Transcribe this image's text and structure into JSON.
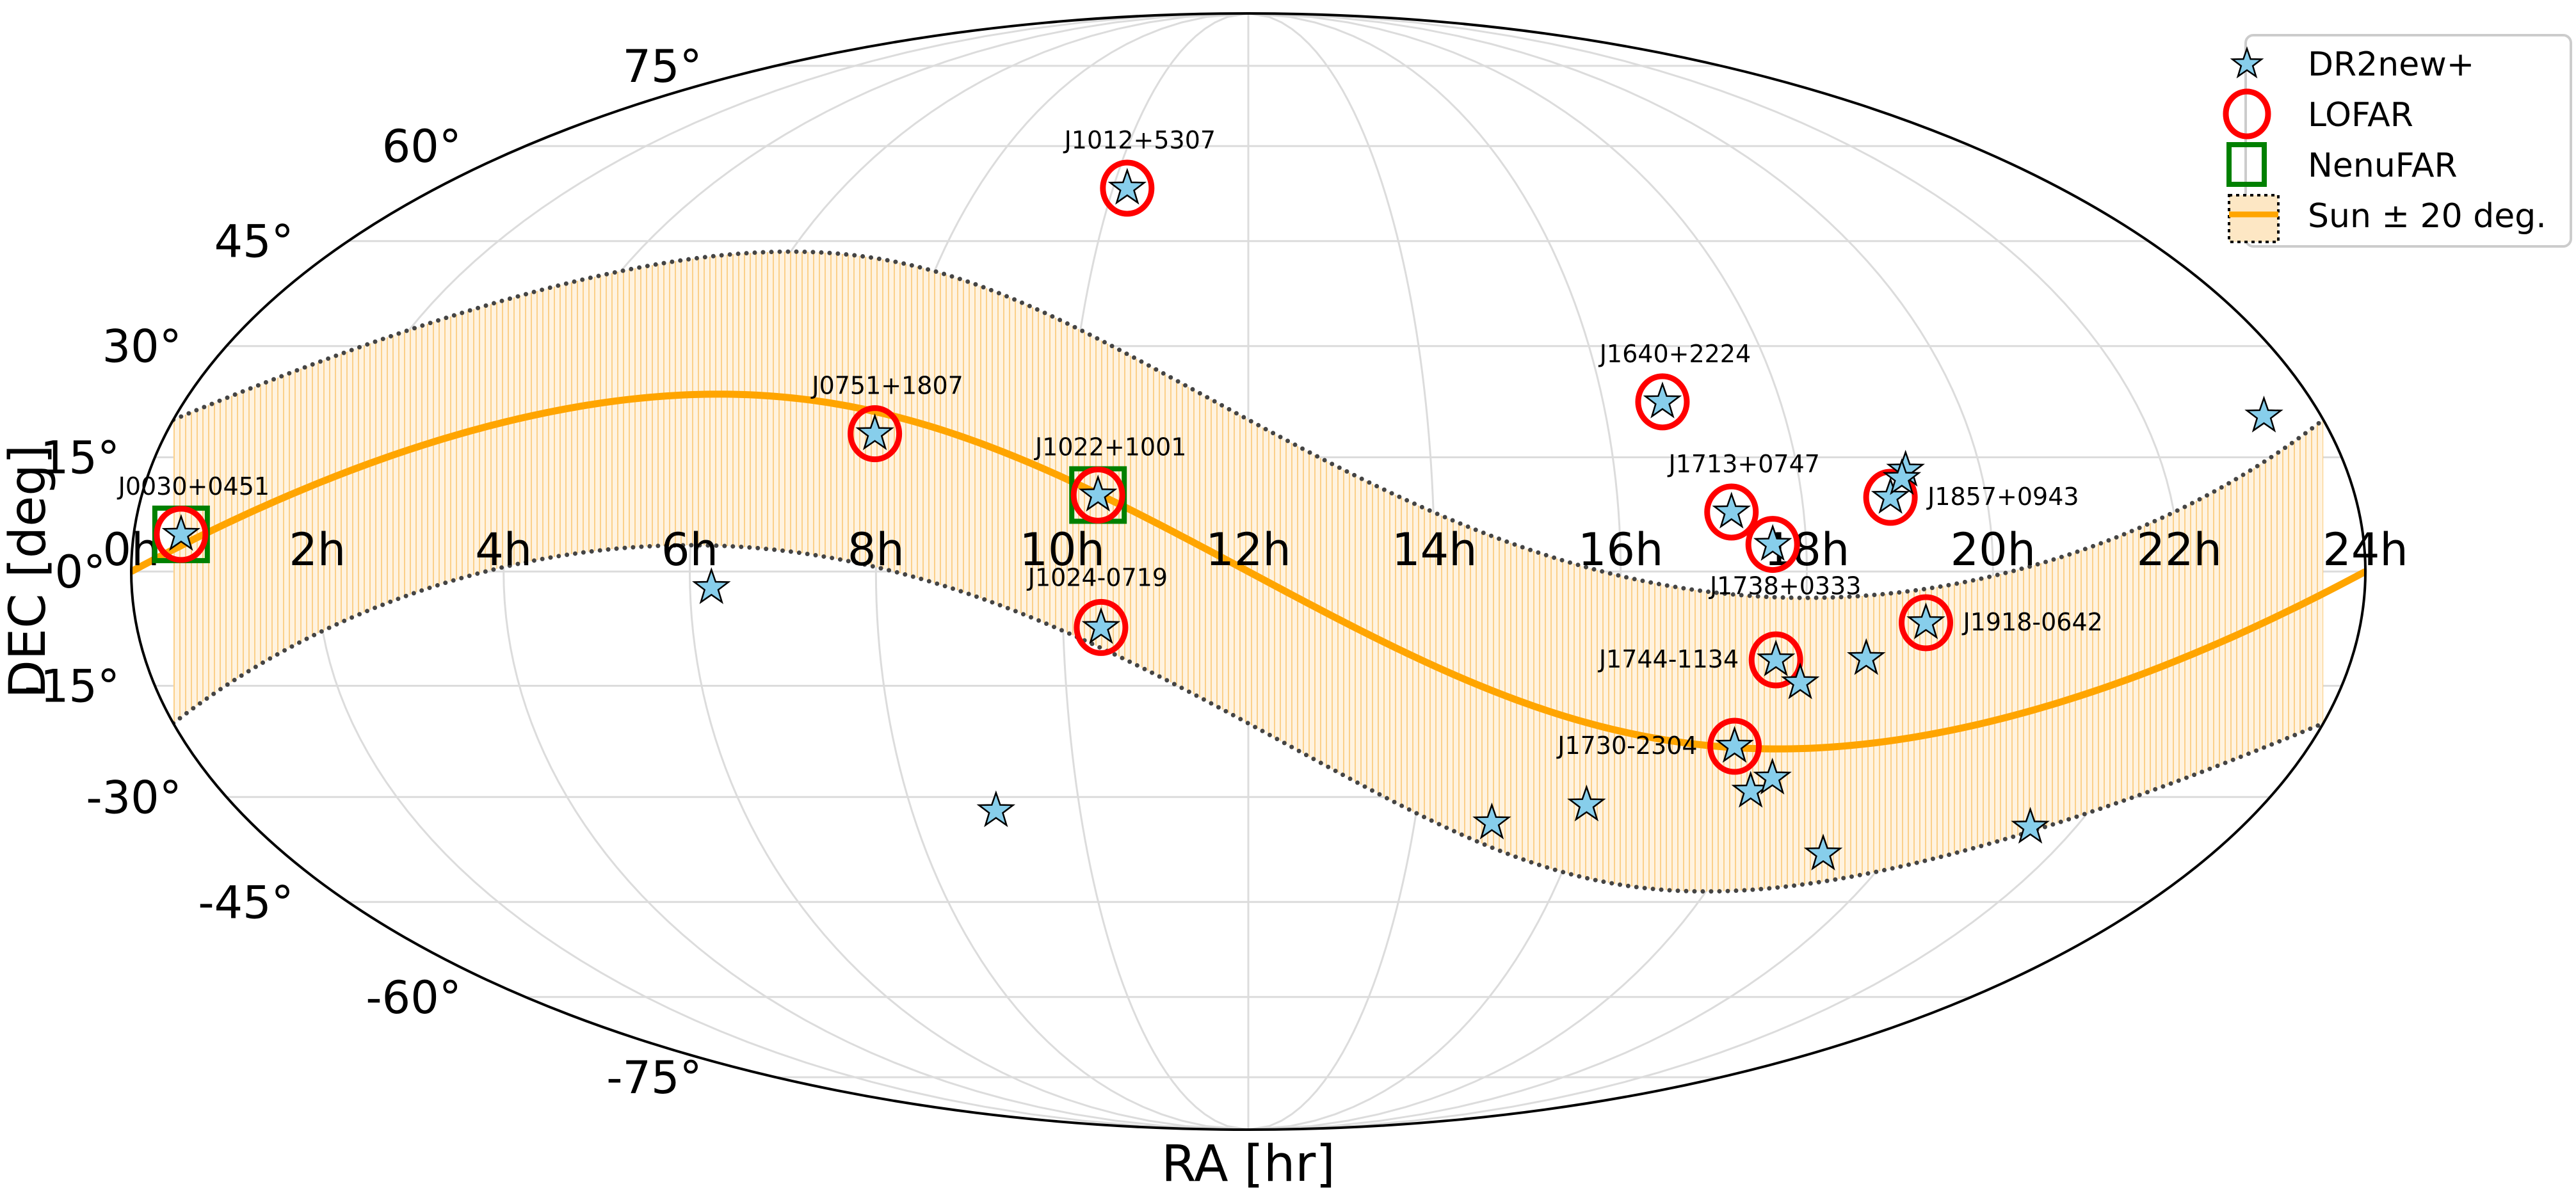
{
  "chart_data": {
    "type": "scatter",
    "projection": "mollweide",
    "title": "",
    "xlabel": "RA [hr]",
    "ylabel": "DEC [deg]",
    "x_ticks": [
      "0h",
      "2h",
      "4h",
      "6h",
      "8h",
      "10h",
      "12h",
      "14h",
      "16h",
      "18h",
      "20h",
      "22h",
      "24h"
    ],
    "x_tick_values_hr": [
      0,
      2,
      4,
      6,
      8,
      10,
      12,
      14,
      16,
      18,
      20,
      22,
      24
    ],
    "y_ticks": [
      "75°",
      "60°",
      "45°",
      "30°",
      "15°",
      "0°",
      "-15°",
      "-30°",
      "-45°",
      "-60°",
      "-75°"
    ],
    "y_tick_values_deg": [
      75,
      60,
      45,
      30,
      15,
      0,
      -15,
      -30,
      -45,
      -60,
      -75
    ],
    "grid": true,
    "legend": {
      "placement": "top-right",
      "entries": [
        "DR2new+",
        "LOFAR",
        "NenuFAR",
        "Sun ± 20 deg."
      ]
    },
    "colors": {
      "star": "#87ceeb",
      "lofar": "#ff0000",
      "nenufar": "#008000",
      "sun": "#ffa500",
      "band": "#fde7c4"
    },
    "sun_band_halfwidth_deg": 20,
    "obliquity_deg": 23.44,
    "series": [
      {
        "name": "DR2new+",
        "points": [
          {
            "label": "J0030+0451",
            "ra": 0.51,
            "dec": 4.86,
            "label_side": "above"
          },
          {
            "label": "J0751+1807",
            "ra": 7.86,
            "dec": 18.13,
            "label_side": "above"
          },
          {
            "label": "J1012+5307",
            "ra": 10.21,
            "dec": 53.12,
            "label_side": "above"
          },
          {
            "label": "J1022+1001",
            "ra": 10.37,
            "dec": 10.02,
            "label_side": "above"
          },
          {
            "label": "J1024-0719",
            "ra": 10.41,
            "dec": -7.32,
            "label_side": "below"
          },
          {
            "label": "J1640+2224",
            "ra": 16.67,
            "dec": 22.4,
            "label_side": "above"
          },
          {
            "label": "J1713+0747",
            "ra": 17.22,
            "dec": 7.79,
            "label_side": "above"
          },
          {
            "label": "J1738+0333",
            "ra": 17.64,
            "dec": 3.55,
            "label_side": "below"
          },
          {
            "label": "J1744-1134",
            "ra": 17.74,
            "dec": -11.58,
            "label_side": "left"
          },
          {
            "label": "J1730-2304",
            "ra": 17.5,
            "dec": -23.08,
            "label_side": "left"
          },
          {
            "label": "J1857+0943",
            "ra": 18.96,
            "dec": 9.72,
            "label_side": "right"
          },
          {
            "label": "J1918-0642",
            "ra": 19.31,
            "dec": -6.7,
            "label_side": "right"
          },
          {
            "label": "",
            "ra": 6.23,
            "dec": -2.1
          },
          {
            "label": "",
            "ra": 9.0,
            "dec": -31.9
          },
          {
            "label": "",
            "ra": 23.36,
            "dec": 20.5
          },
          {
            "label": "",
            "ra": 14.93,
            "dec": -33.6
          },
          {
            "label": "",
            "ra": 16.0,
            "dec": -31.1
          },
          {
            "label": "",
            "ra": 17.87,
            "dec": -29.2
          },
          {
            "label": "",
            "ra": 18.06,
            "dec": -27.4
          },
          {
            "label": "",
            "ra": 19.16,
            "dec": -38.0
          },
          {
            "label": "",
            "ra": 18.05,
            "dec": -14.6
          },
          {
            "label": "",
            "ra": 18.72,
            "dec": -11.4
          },
          {
            "label": "",
            "ra": 19.18,
            "dec": 13.3
          },
          {
            "label": "",
            "ra": 19.12,
            "dec": 12.2
          },
          {
            "label": "",
            "ra": 21.45,
            "dec": -34.2
          }
        ]
      },
      {
        "name": "LOFAR",
        "members": [
          "J0030+0451",
          "J0751+1807",
          "J1012+5307",
          "J1022+1001",
          "J1024-0719",
          "J1640+2224",
          "J1713+0747",
          "J1738+0333",
          "J1744-1134",
          "J1730-2304",
          "J1857+0943",
          "J1918-0642"
        ]
      },
      {
        "name": "NenuFAR",
        "members": [
          "J0030+0451",
          "J1022+1001"
        ]
      }
    ]
  }
}
